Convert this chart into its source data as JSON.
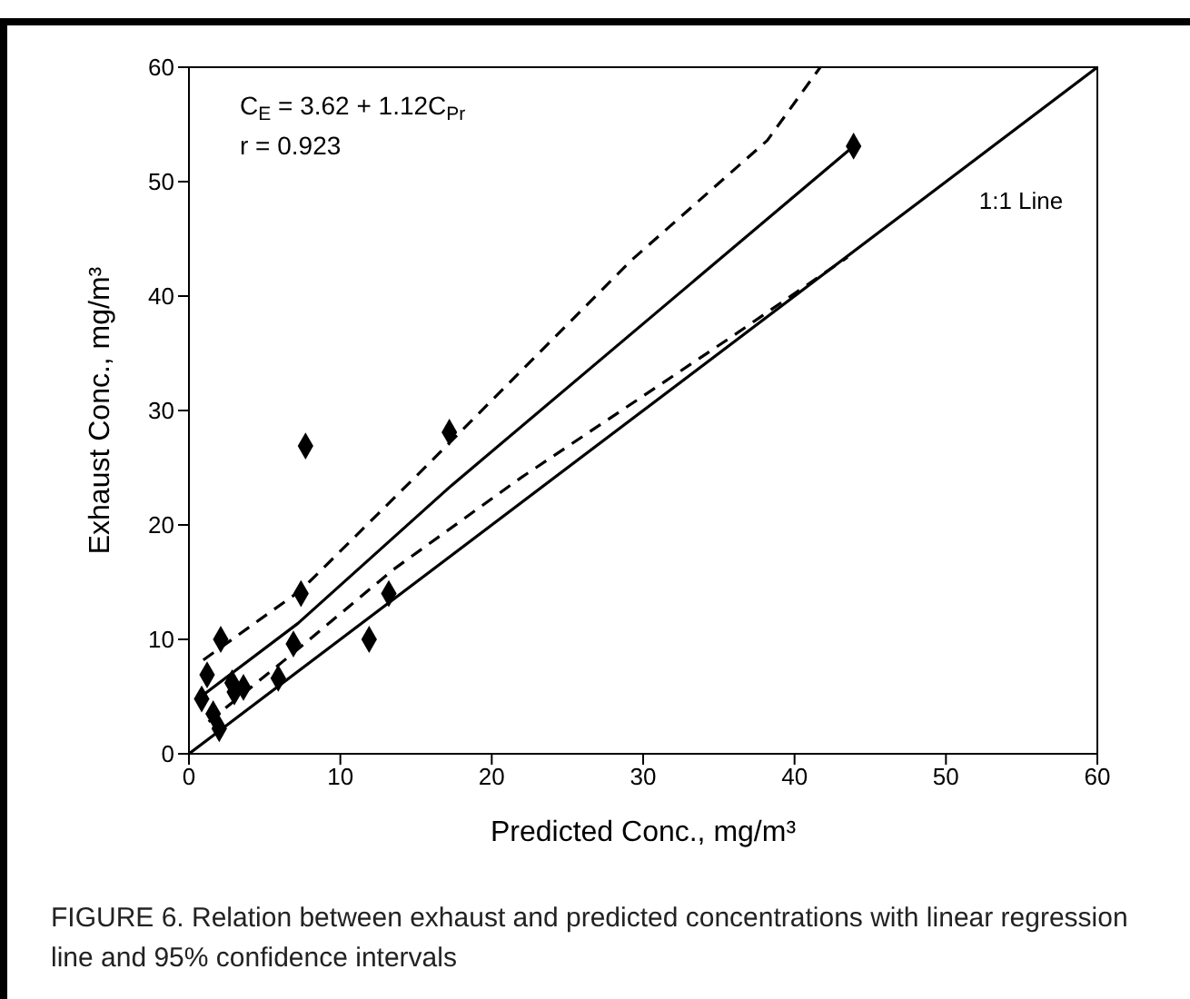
{
  "chart_data": {
    "type": "scatter",
    "xlabel": "Predicted Conc., mg/m³",
    "ylabel": "Exhaust Conc., mg/m³",
    "xlim": [
      0,
      60
    ],
    "ylim": [
      0,
      60
    ],
    "xticks": [
      0,
      10,
      20,
      30,
      40,
      50,
      60
    ],
    "yticks": [
      0,
      10,
      20,
      30,
      40,
      50,
      60
    ],
    "grid": false,
    "x": [
      0.84,
      1.2,
      2.1,
      1.6,
      2.0,
      2.85,
      3.0,
      3.6,
      5.9,
      6.9,
      7.4,
      7.7,
      11.9,
      13.2,
      17.2,
      43.9
    ],
    "series": [
      {
        "color": "#000000",
        "marker": "diamond",
        "values": [
          4.8,
          6.9,
          10,
          3.5,
          2.2,
          6.2,
          5.4,
          5.8,
          6.6,
          9.6,
          14.0,
          26.9,
          10.0,
          14.0,
          28.1,
          53.1
        ]
      },
      {
        "type": "line",
        "color": "#000000",
        "line_style": "solid",
        "marker": "none",
        "x": [
          0.9,
          7.2,
          17.3,
          43.9
        ],
        "values": [
          5.1,
          11.4,
          23.4,
          53.1
        ]
      },
      {
        "type": "line",
        "color": "#000000",
        "line_style": "dashed",
        "marker": "none",
        "x": [
          0.95,
          7.4,
          15.8,
          29.2,
          38.2,
          41.7
        ],
        "values": [
          8.2,
          14.3,
          25.3,
          43.1,
          53.6,
          60
        ]
      },
      {
        "type": "line",
        "color": "#000000",
        "line_style": "dashed",
        "marker": "none",
        "x": [
          1.3,
          6.7,
          13.5,
          21.9,
          35.8,
          43.5
        ],
        "values": [
          2.8,
          8.6,
          16.1,
          24.1,
          36.4,
          43.4
        ]
      },
      {
        "type": "line",
        "name": "1:1 Line",
        "color": "#000000",
        "line_style": "solid",
        "marker": "none",
        "x": [
          0,
          60
        ],
        "values": [
          0,
          60
        ]
      }
    ],
    "annotations": [
      "C$_{E}$ = 3.62 + 1.12C$_{Pr}$",
      "r = 0.923",
      "FIGURE 6.    Relation between exhaust and predicted concentrations with linear regression line and 95% confidence intervals"
    ]
  }
}
